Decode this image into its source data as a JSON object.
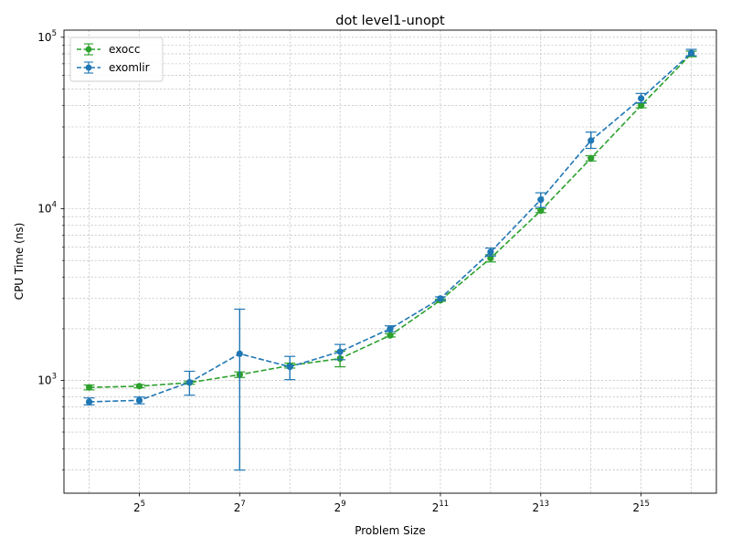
{
  "chart_data": {
    "type": "line",
    "title": "dot level1-unopt",
    "xlabel": "Problem Size",
    "ylabel": "CPU Time (ns)",
    "x_scale": "log2",
    "y_scale": "log10",
    "x_ticks": [
      {
        "value": 32,
        "base": "2",
        "exp": "5"
      },
      {
        "value": 128,
        "base": "2",
        "exp": "7"
      },
      {
        "value": 512,
        "base": "2",
        "exp": "9"
      },
      {
        "value": 2048,
        "base": "2",
        "exp": "11"
      },
      {
        "value": 8192,
        "base": "2",
        "exp": "13"
      },
      {
        "value": 32768,
        "base": "2",
        "exp": "15"
      }
    ],
    "y_ticks": [
      {
        "value": 1000,
        "base": "10",
        "exp": "3"
      },
      {
        "value": 10000,
        "base": "10",
        "exp": "4"
      },
      {
        "value": 100000,
        "base": "10",
        "exp": "5"
      }
    ],
    "xlim": [
      11.3,
      92682
    ],
    "ylim": [
      220,
      110000
    ],
    "grid": true,
    "legend_position": "top-left",
    "x": [
      16,
      32,
      64,
      128,
      256,
      512,
      1024,
      2048,
      4096,
      8192,
      16384,
      32768,
      65536
    ],
    "series": [
      {
        "name": "exocc",
        "color": "#2ca02c",
        "values": [
          910,
          925,
          970,
          1080,
          1220,
          1340,
          1830,
          2930,
          5150,
          9750,
          19700,
          40000,
          80000
        ],
        "err_low": [
          880,
          905,
          950,
          1040,
          1180,
          1200,
          1790,
          2890,
          4900,
          9500,
          19000,
          38800,
          77000
        ],
        "err_high": [
          940,
          945,
          990,
          1120,
          1260,
          1480,
          1870,
          2970,
          5400,
          10000,
          20400,
          41200,
          83000
        ]
      },
      {
        "name": "exomlir",
        "color": "#1f77b4",
        "values": [
          750,
          765,
          975,
          1430,
          1200,
          1470,
          2000,
          3000,
          5600,
          11300,
          25000,
          44000,
          81000
        ],
        "err_low": [
          720,
          730,
          820,
          300,
          1010,
          1320,
          1920,
          2930,
          5300,
          10200,
          22500,
          41500,
          78000
        ],
        "err_high": [
          790,
          800,
          1130,
          2600,
          1380,
          1620,
          2080,
          3070,
          5900,
          12400,
          28000,
          47000,
          85000
        ]
      }
    ]
  }
}
